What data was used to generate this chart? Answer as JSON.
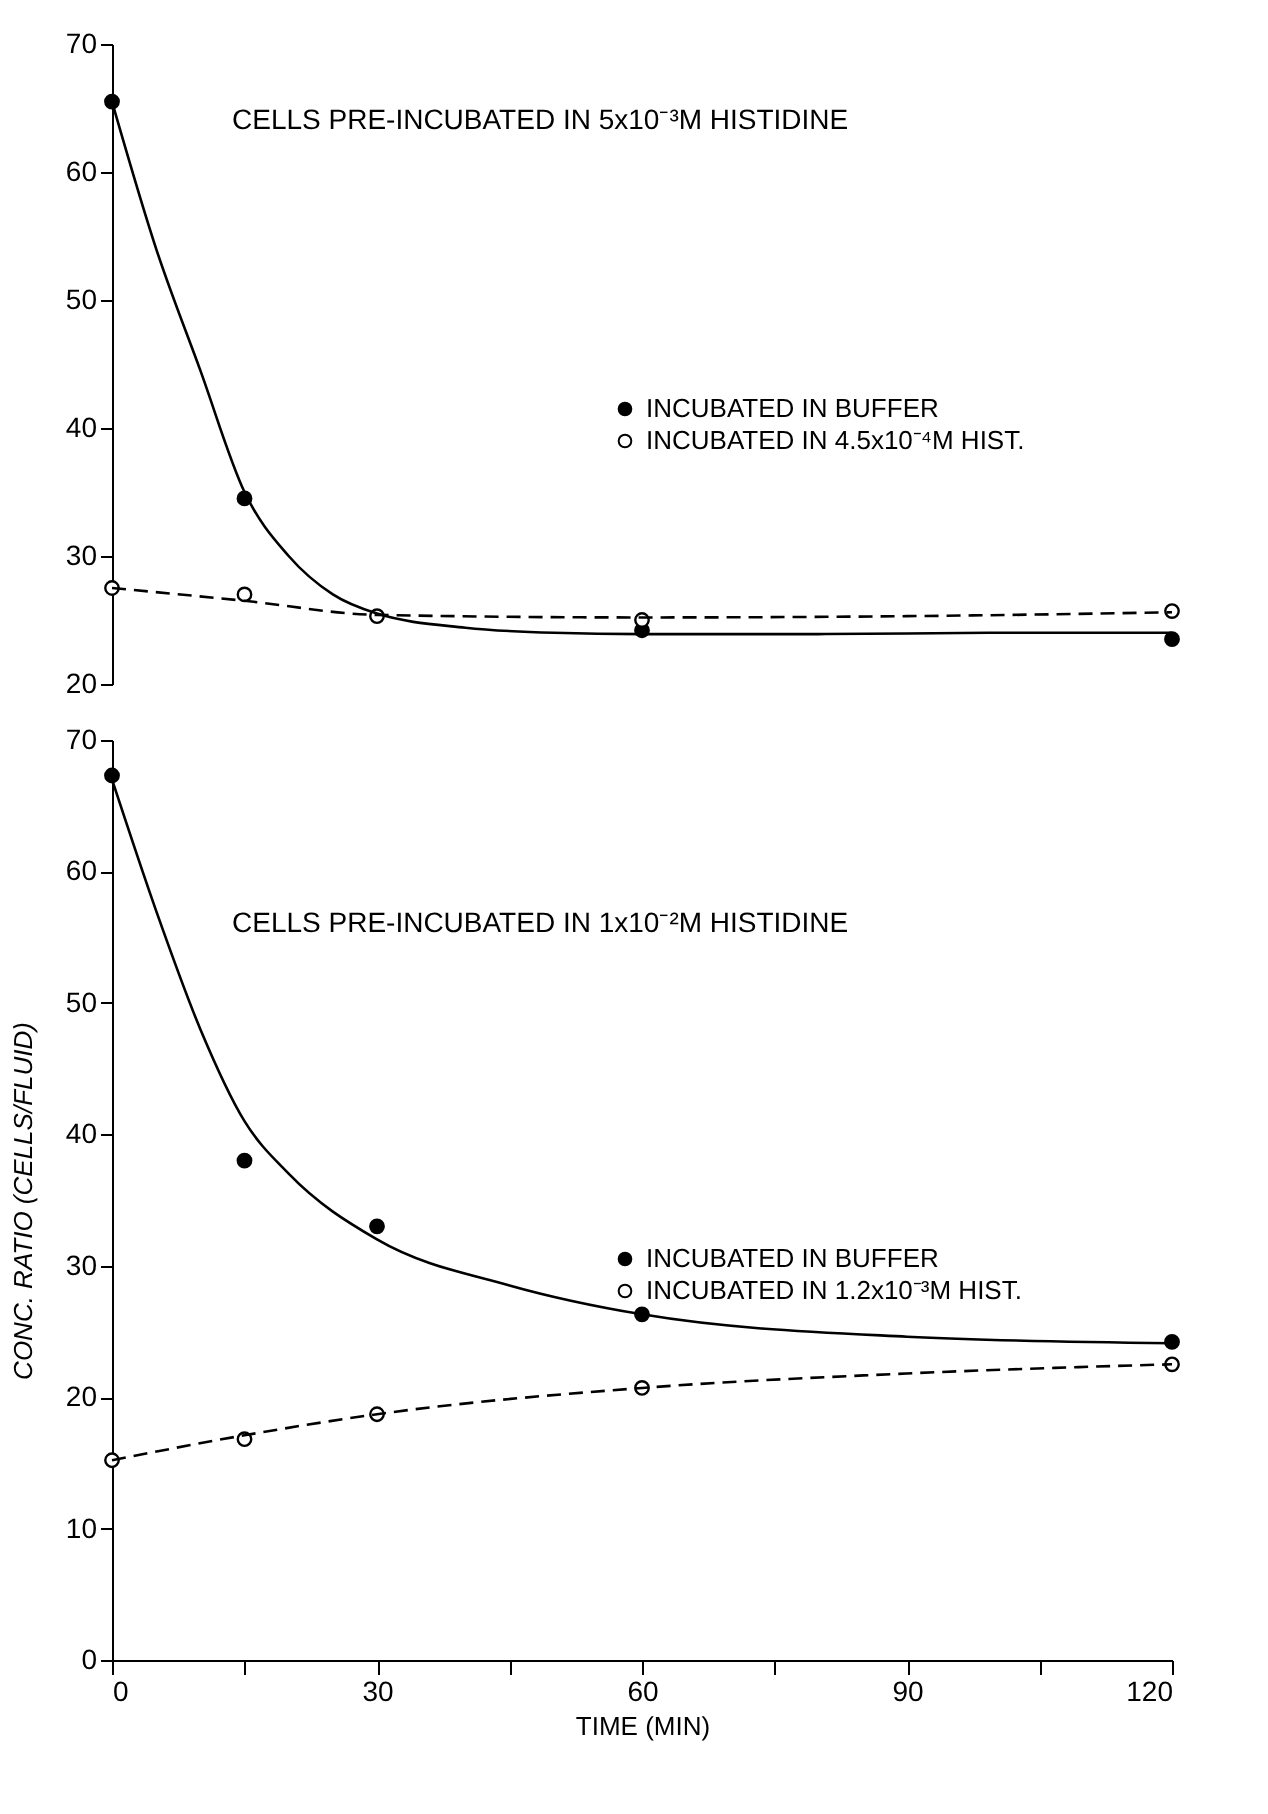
{
  "chart_data": [
    {
      "type": "scatter",
      "title": "CELLS PRE-INCUBATED IN 5x10⁻³M HISTIDINE",
      "xlim": [
        0,
        120
      ],
      "ylim": [
        20,
        70
      ],
      "yticks": [
        20,
        30,
        40,
        50,
        60,
        70
      ],
      "tick_labels": "y",
      "grid": false,
      "legend": "right",
      "marker": "circle",
      "series": [
        {
          "name": "INCUBATED IN BUFFER",
          "color": "#000000",
          "x": [
            0,
            15,
            60,
            120
          ],
          "values": [
            65.5,
            34.5,
            24.2,
            23.5
          ]
        },
        {
          "name": "INCUBATED IN 4.5x10⁻⁴M HIST.",
          "color": "#000000",
          "x": [
            0,
            15,
            30,
            60,
            120
          ],
          "values": [
            27.5,
            27,
            25.3,
            25,
            25.7
          ]
        },
        {
          "type": "line",
          "line_style": "solid",
          "marker": "none",
          "color": "#000000",
          "x": [
            0,
            5,
            10,
            15,
            20,
            25,
            30,
            40,
            50,
            60,
            80,
            100,
            120
          ],
          "values": [
            65.5,
            54,
            44.5,
            35,
            30,
            27,
            25.5,
            24.4,
            24,
            23.9,
            23.9,
            24,
            24
          ]
        },
        {
          "type": "line",
          "line_style": "dashed",
          "marker": "none",
          "color": "#000000",
          "x": [
            0,
            15,
            30,
            60,
            90,
            120
          ],
          "values": [
            27.5,
            26.5,
            25.4,
            25.2,
            25.3,
            25.6
          ]
        }
      ]
    },
    {
      "type": "scatter",
      "title": "CELLS PRE-INCUBATED IN 1x10⁻²M HISTIDINE",
      "xlabel": "TIME (MIN)",
      "ylabel": "CONC. RATIO (CELLS/FLUID)",
      "xlim": [
        0,
        120
      ],
      "ylim": [
        0,
        70
      ],
      "xticks": [
        0,
        {
          "value": 15,
          "label": null
        },
        30,
        {
          "value": 45,
          "label": null
        },
        60,
        {
          "value": 75,
          "label": null
        },
        90,
        {
          "value": 105,
          "label": null
        },
        120
      ],
      "yticks": [
        0,
        10,
        20,
        30,
        40,
        50,
        60,
        70
      ],
      "grid": false,
      "legend": "right",
      "marker": "circle",
      "series": [
        {
          "name": "INCUBATED IN BUFFER",
          "color": "#000000",
          "x": [
            0,
            15,
            30,
            60,
            120
          ],
          "values": [
            67.3,
            38,
            33,
            26.3,
            24.2
          ]
        },
        {
          "name": "INCUBATED IN 1.2x10⁻³M HIST.",
          "color": "#000000",
          "x": [
            0,
            15,
            30,
            60,
            120
          ],
          "values": [
            15.2,
            16.8,
            18.7,
            20.7,
            22.5
          ]
        },
        {
          "type": "line",
          "line_style": "solid",
          "marker": "none",
          "color": "#000000",
          "x": [
            0,
            5,
            10,
            15,
            20,
            30,
            45,
            60,
            90,
            120
          ],
          "values": [
            67,
            57,
            48,
            41,
            37,
            32,
            28.5,
            26.3,
            24.6,
            24.1
          ]
        },
        {
          "type": "line",
          "line_style": "dashed",
          "marker": "none",
          "color": "#000000",
          "x": [
            0,
            15,
            30,
            60,
            90,
            120
          ],
          "values": [
            15.2,
            17.1,
            18.7,
            20.7,
            21.8,
            22.5
          ]
        }
      ]
    }
  ]
}
